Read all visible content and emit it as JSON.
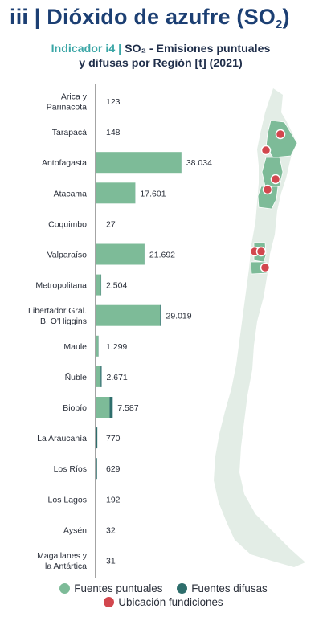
{
  "header": {
    "title_prefix": "iii | Dióxido de azufre (SO",
    "title_sub": "2",
    "title_suffix": ")"
  },
  "subtitle": {
    "indicator": "Indicador i4",
    "sep": " | ",
    "line1_text": "SO₂ - Emisiones puntuales",
    "line2_text": "y difusas por Región [t] (2021)"
  },
  "chart_data": {
    "type": "bar",
    "orientation": "horizontal",
    "stacked": true,
    "categories": [
      "Arica y Parinacota",
      "Tarapacá",
      "Antofagasta",
      "Atacama",
      "Coquimbo",
      "Valparaíso",
      "Metropolitana",
      "Libertador Gral. B. O'Higgins",
      "Maule",
      "Ñuble",
      "Biobío",
      "La Araucanía",
      "Los Ríos",
      "Los Lagos",
      "Aysén",
      "Magallanes y la Antártica"
    ],
    "category_lines": [
      [
        "Arica y",
        "Parinacota"
      ],
      [
        "Tarapacá"
      ],
      [
        "Antofagasta"
      ],
      [
        "Atacama"
      ],
      [
        "Coquimbo"
      ],
      [
        "Valparaíso"
      ],
      [
        "Metropolitana"
      ],
      [
        "Libertador Gral.",
        "B. O'Higgins"
      ],
      [
        "Maule"
      ],
      [
        "Ñuble"
      ],
      [
        "Biobío"
      ],
      [
        "La Araucanía"
      ],
      [
        "Los Ríos"
      ],
      [
        "Los Lagos"
      ],
      [
        "Aysén"
      ],
      [
        "Magallanes y",
        "la Antártica"
      ]
    ],
    "labels": [
      "123",
      "148",
      "38.034",
      "17.601",
      "27",
      "21.692",
      "2.504",
      "29.019",
      "1.299",
      "2.671",
      "7.587",
      "770",
      "629",
      "192",
      "32",
      "31"
    ],
    "series": [
      {
        "name": "Fuentes puntuales",
        "color": "#7dbb98",
        "values": [
          0,
          0,
          38000,
          17560,
          0,
          21650,
          2350,
          28600,
          1200,
          2200,
          6200,
          150,
          250,
          0,
          0,
          0
        ]
      },
      {
        "name": "Fuentes difusas",
        "color": "#2e6e6c",
        "values": [
          123,
          148,
          34,
          41,
          27,
          42,
          154,
          419,
          99,
          471,
          1387,
          620,
          379,
          192,
          32,
          31
        ]
      }
    ],
    "xlim": [
      0,
      38100
    ]
  },
  "legend": {
    "items": [
      {
        "label": "Fuentes puntuales",
        "color": "#7dbb98"
      },
      {
        "label": "Fuentes difusas",
        "color": "#2e6e6c"
      }
    ],
    "smelter_label": "Ubicación fundiciones",
    "smelter_color": "#d2474e"
  },
  "map": {
    "base_color": "#e3ede6",
    "highlight_color": "#7dbb98",
    "smelters": [
      {
        "region": "Antofagasta"
      },
      {
        "region": "Antofagasta"
      },
      {
        "region": "Atacama"
      },
      {
        "region": "Atacama"
      },
      {
        "region": "Valparaíso"
      },
      {
        "region": "Valparaíso"
      },
      {
        "region": "Libertador Gral. B. O'Higgins"
      }
    ]
  }
}
